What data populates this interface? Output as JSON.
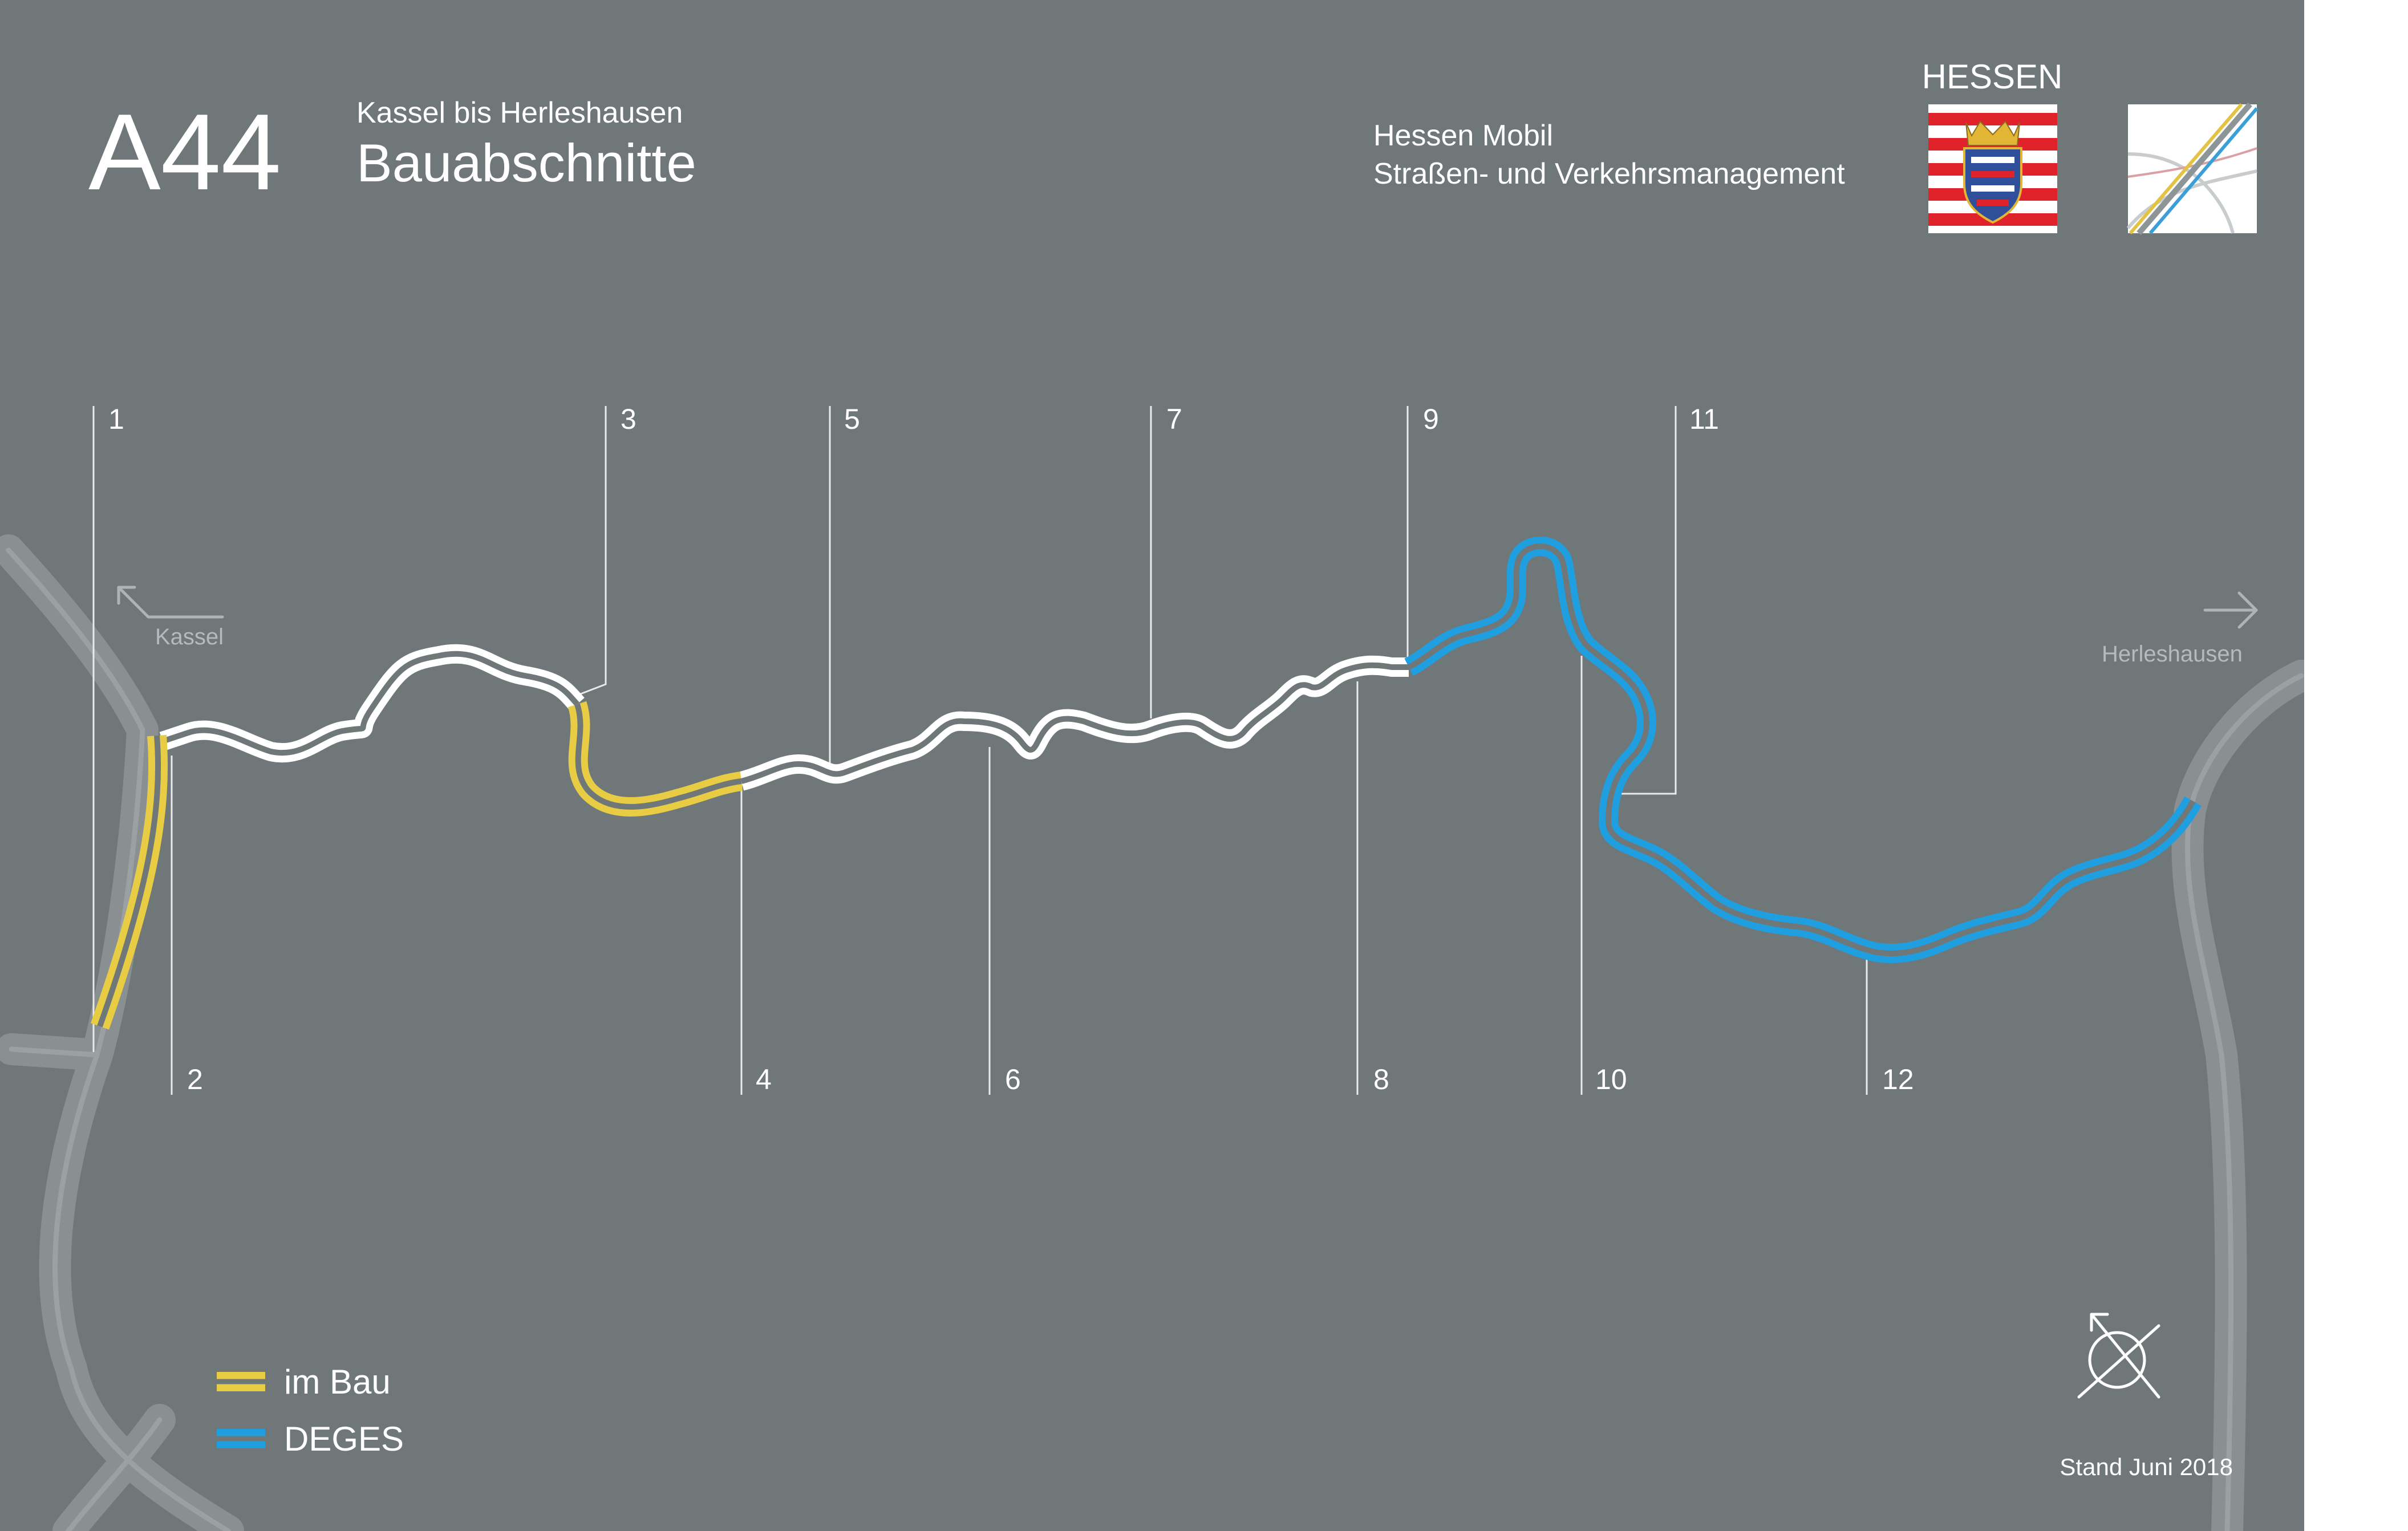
{
  "header": {
    "motorway": "A44",
    "subtitle": "Kassel bis Herleshausen",
    "title": "Bauabschnitte",
    "org_line1": "Hessen Mobil",
    "org_line2": "Straßen- und Verkehrsmanagement",
    "state_label": "HESSEN"
  },
  "directions": {
    "west": "Kassel",
    "east": "Herleshausen"
  },
  "sections": [
    "1",
    "2",
    "3",
    "4",
    "5",
    "6",
    "7",
    "8",
    "9",
    "10",
    "11",
    "12"
  ],
  "legend": [
    {
      "label": "im Bau",
      "color": "#e8cc44"
    },
    {
      "label": "DEGES",
      "color": "#1f9fe0"
    }
  ],
  "footer": {
    "status": "Stand Juni 2018"
  },
  "colors": {
    "background": "#707779",
    "route_planned": "#ffffff",
    "route_under_construction": "#e8cc44",
    "route_deges": "#1f9fe0",
    "existing_roads": "#8a9092",
    "text": "#ffffff",
    "muted_text": "#b4babd",
    "hessen_red": "#e0222b"
  },
  "icons": [
    "arrow-up-left-icon",
    "arrow-right-icon",
    "hessen-coat-of-arms-icon",
    "interchange-logo-icon",
    "north-compass-icon"
  ]
}
